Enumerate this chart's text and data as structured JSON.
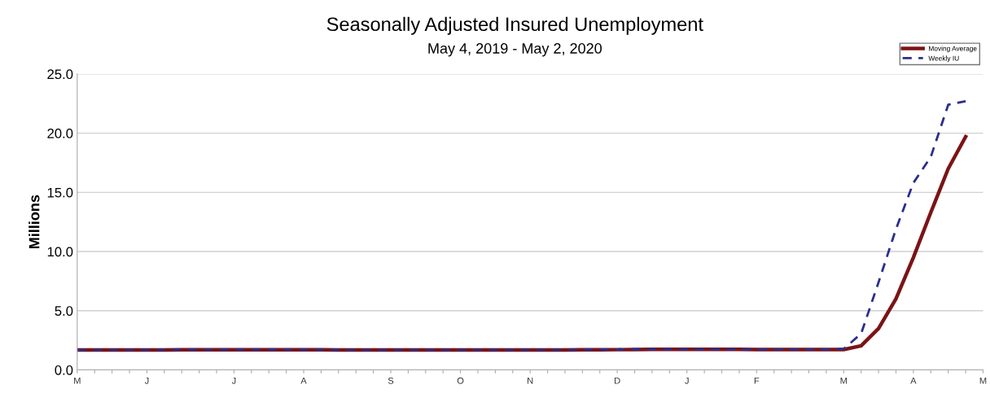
{
  "chart_data": {
    "type": "line",
    "title": "Seasonally Adjusted Insured Unemployment",
    "subtitle": "May 4, 2019 - May 2, 2020",
    "ylabel": "Millions",
    "categories": [
      "M",
      null,
      null,
      null,
      "J",
      null,
      null,
      null,
      null,
      "J",
      null,
      null,
      null,
      "A",
      null,
      null,
      null,
      null,
      "S",
      null,
      null,
      null,
      "O",
      null,
      null,
      null,
      "N",
      null,
      null,
      null,
      null,
      "D",
      null,
      null,
      null,
      "J",
      null,
      null,
      null,
      "F",
      null,
      null,
      null,
      null,
      "M",
      null,
      null,
      null,
      "A",
      null,
      null,
      null,
      "M"
    ],
    "series": [
      {
        "name": "Moving Average",
        "color": "#7b1416",
        "line_style": "solid",
        "values": [
          1.68,
          1.68,
          1.68,
          1.69,
          1.69,
          1.69,
          1.7,
          1.7,
          1.7,
          1.7,
          1.7,
          1.7,
          1.7,
          1.7,
          1.7,
          1.69,
          1.69,
          1.68,
          1.68,
          1.68,
          1.68,
          1.68,
          1.68,
          1.68,
          1.69,
          1.69,
          1.69,
          1.69,
          1.69,
          1.7,
          1.7,
          1.71,
          1.72,
          1.73,
          1.74,
          1.74,
          1.74,
          1.73,
          1.73,
          1.72,
          1.72,
          1.72,
          1.72,
          1.72,
          1.72,
          2.04,
          3.5,
          6.0,
          9.5,
          13.3,
          17.0,
          19.7,
          null
        ]
      },
      {
        "name": "Weekly IU",
        "color": "#2b2e8c",
        "line_style": "dashed",
        "values": [
          1.68,
          1.68,
          1.69,
          1.69,
          1.69,
          1.7,
          1.71,
          1.7,
          1.7,
          1.71,
          1.7,
          1.71,
          1.71,
          1.7,
          1.69,
          1.69,
          1.68,
          1.68,
          1.68,
          1.69,
          1.69,
          1.68,
          1.68,
          1.69,
          1.7,
          1.69,
          1.69,
          1.7,
          1.69,
          1.71,
          1.72,
          1.73,
          1.74,
          1.74,
          1.75,
          1.74,
          1.73,
          1.73,
          1.72,
          1.71,
          1.73,
          1.72,
          1.72,
          1.72,
          1.78,
          3.06,
          7.4,
          11.9,
          15.8,
          18.0,
          22.4,
          22.7,
          null
        ]
      }
    ],
    "ylim": [
      0,
      25
    ],
    "yticks": [
      {
        "value": 0,
        "label": "0.0"
      },
      {
        "value": 5,
        "label": "5.0"
      },
      {
        "value": 10,
        "label": "10.0"
      },
      {
        "value": 15,
        "label": "15.0"
      },
      {
        "value": 20,
        "label": "20.0"
      },
      {
        "value": 25,
        "label": "25.0"
      }
    ],
    "grid": "y",
    "legend": "top right",
    "marker": "none"
  }
}
